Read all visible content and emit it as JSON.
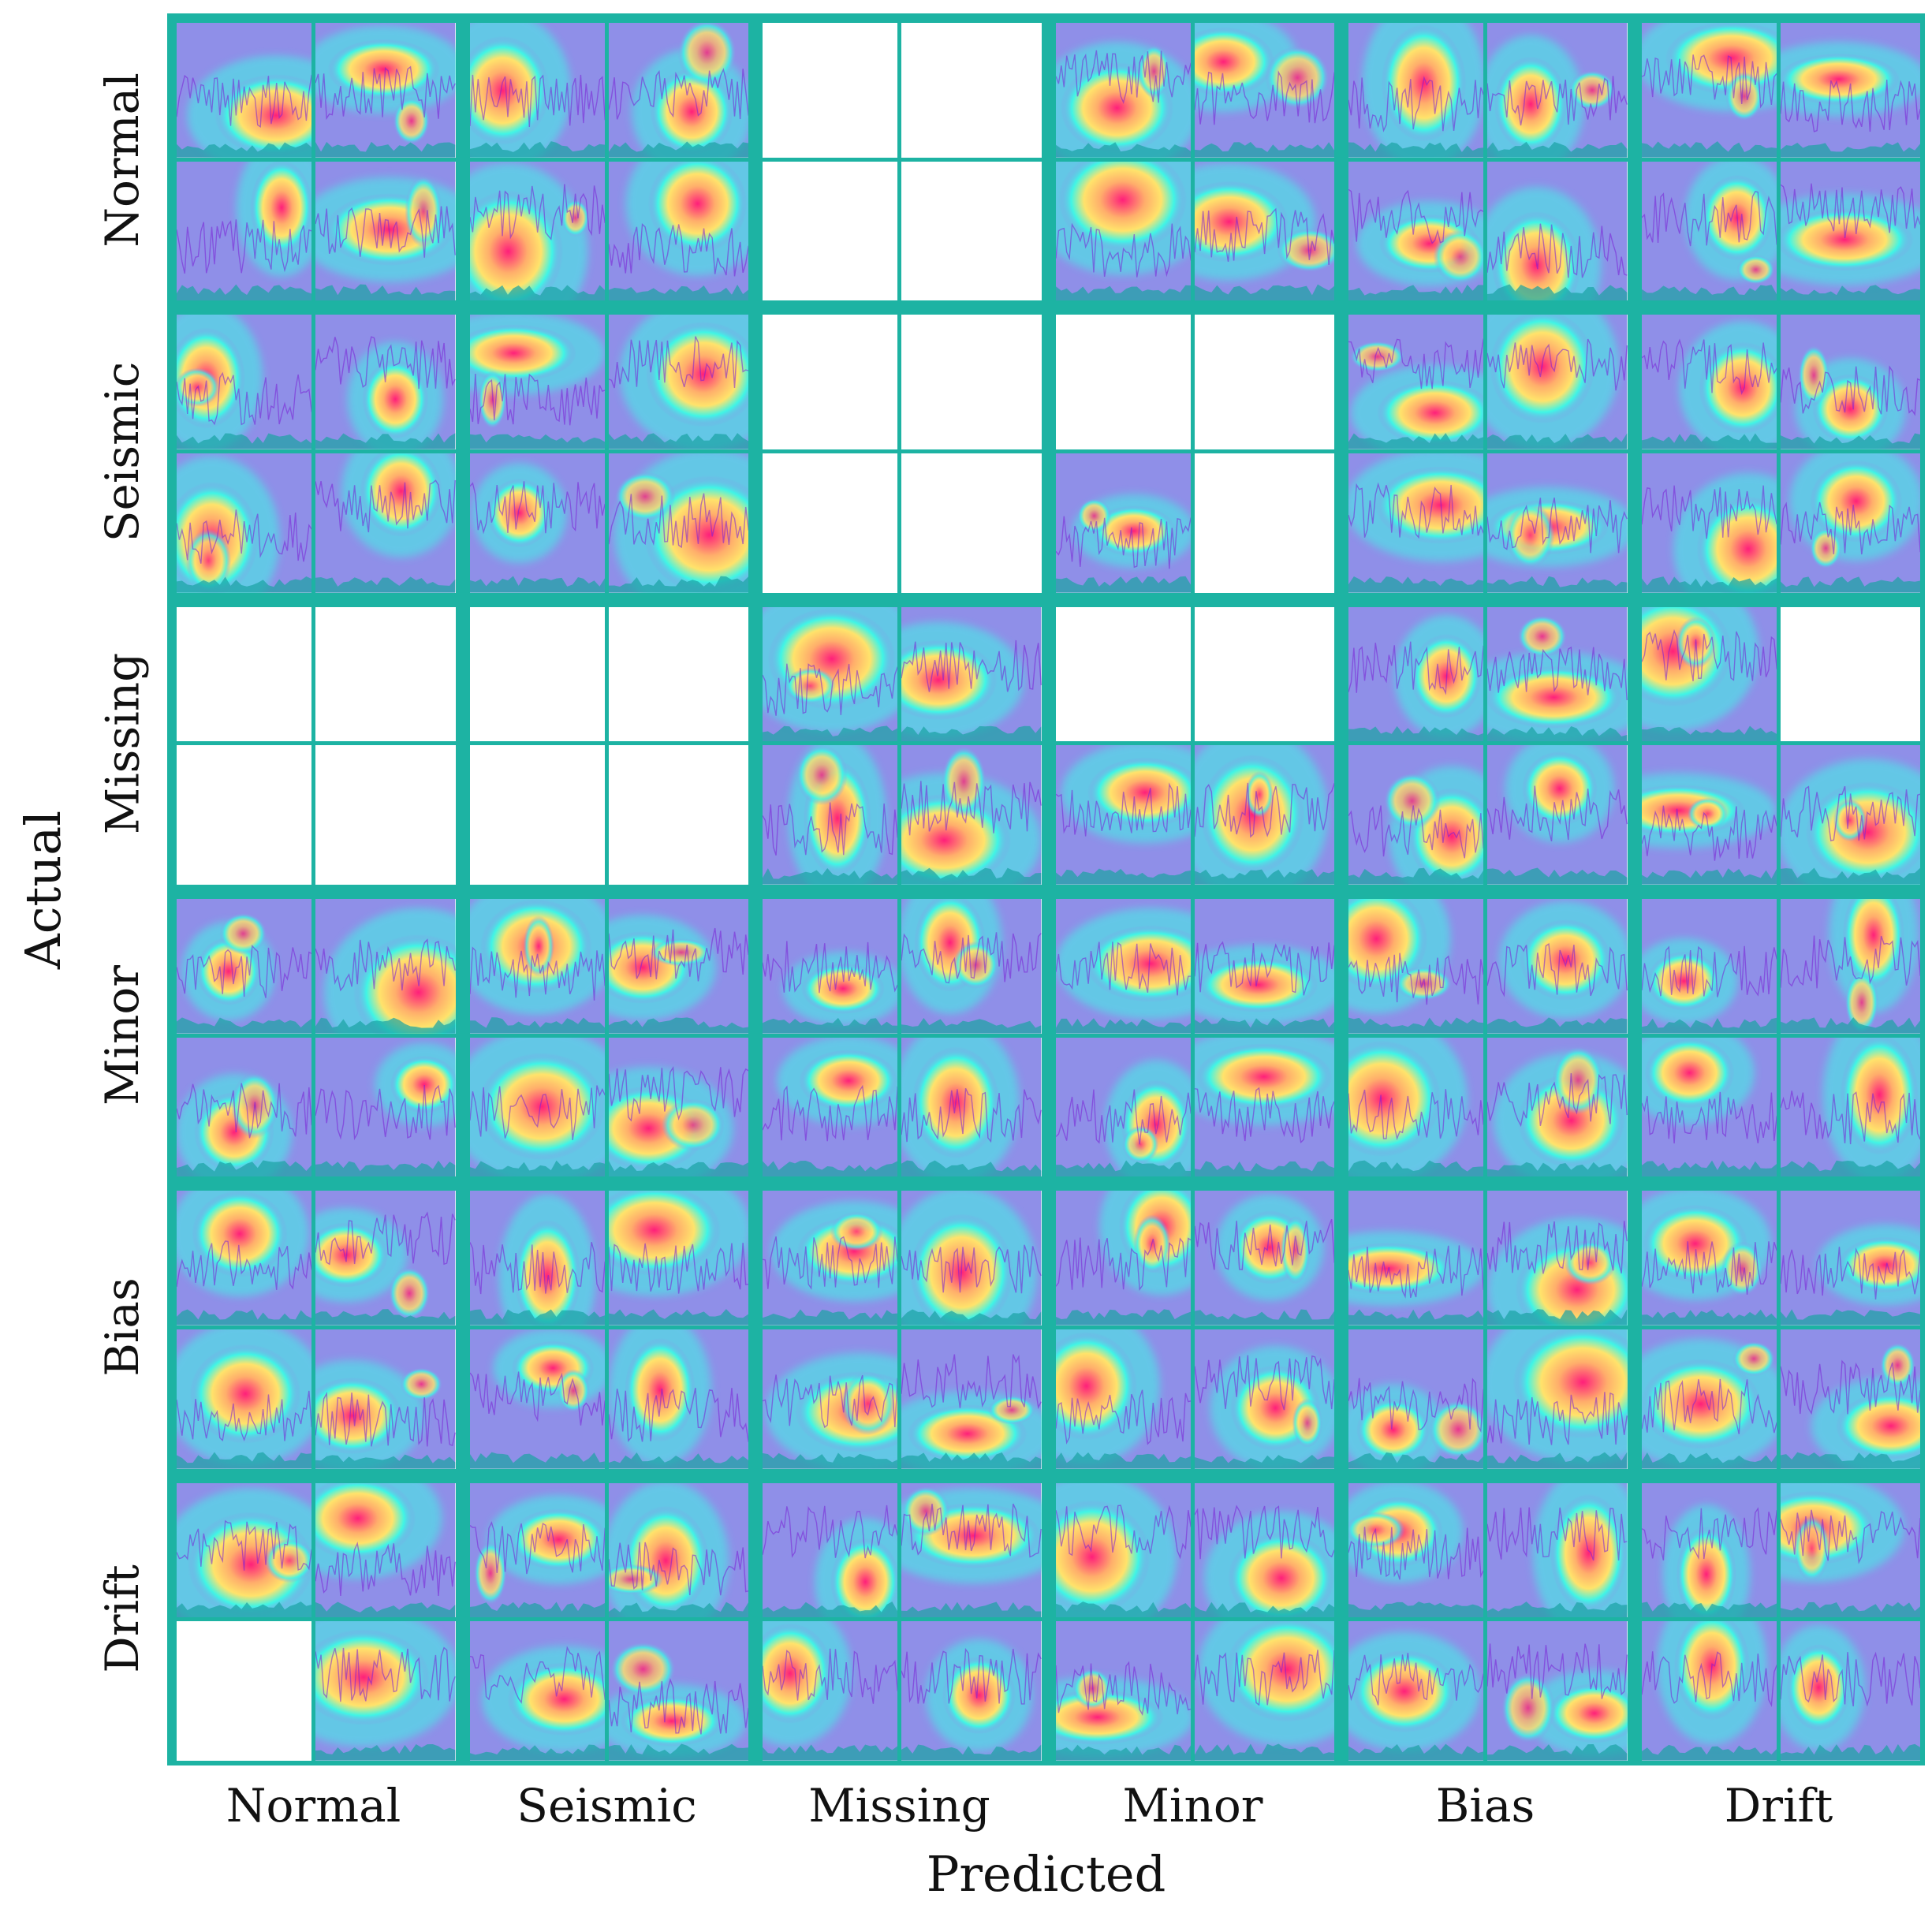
{
  "x_title": "Predicted",
  "y_title": "Actual",
  "classes": [
    "Normal",
    "Seismic",
    "Missing",
    "Minor",
    "Bias",
    "Drift"
  ],
  "colors": {
    "frame": "#1db3a3",
    "background": "#8f8fe8",
    "cam_hot": "#ff1f7a",
    "cam_warm": "#ffae6b",
    "cam_mid": "#ffe36b",
    "cam_cool": "#3ff5e6",
    "signal": "#7a1fd6",
    "baseline": "#1aa3a3"
  },
  "grid": {
    "rows": 12,
    "cols": 12,
    "empty_cells": [
      [
        0,
        4
      ],
      [
        0,
        5
      ],
      [
        1,
        4
      ],
      [
        1,
        5
      ],
      [
        2,
        4
      ],
      [
        2,
        5
      ],
      [
        2,
        6
      ],
      [
        2,
        7
      ],
      [
        3,
        4
      ],
      [
        3,
        5
      ],
      [
        3,
        7
      ],
      [
        4,
        0
      ],
      [
        4,
        1
      ],
      [
        4,
        2
      ],
      [
        4,
        3
      ],
      [
        4,
        6
      ],
      [
        4,
        7
      ],
      [
        4,
        11
      ],
      [
        5,
        0
      ],
      [
        5,
        1
      ],
      [
        5,
        2
      ],
      [
        5,
        3
      ],
      [
        11,
        0
      ]
    ]
  }
}
